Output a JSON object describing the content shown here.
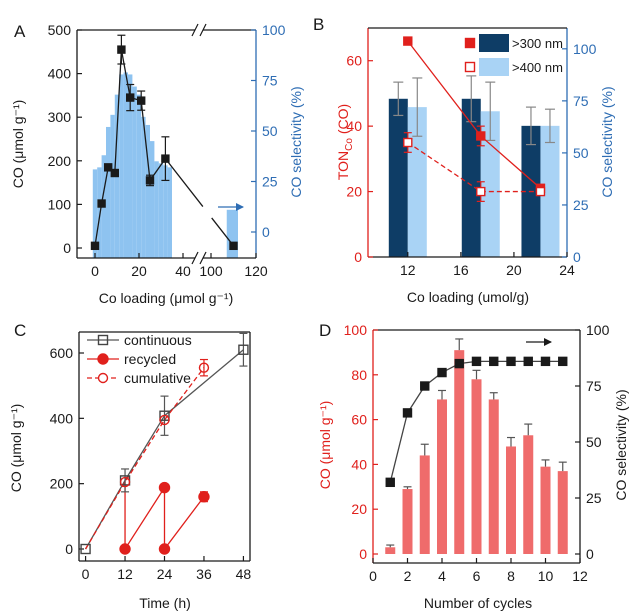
{
  "figure": {
    "colors": {
      "black": "#1a1a1a",
      "blue_axis": "#2e6db4",
      "red_axis": "#e0201c",
      "light_blue": "#99c9f3",
      "bar_mid": "#8ec3f0",
      "dark_navy": "#0e3d66",
      "pale_blue": "#a9d3f5",
      "red_bar": "#ef6b6b"
    }
  },
  "chart_data": [
    {
      "panel": "A",
      "type": "bar+line",
      "panel_label": "A",
      "ylabel_left": "CO (μmol g⁻¹)",
      "ylabel_right": "CO selectivity (%)",
      "xlabel": "Co loading (μmol g⁻¹)",
      "x_ticks": [
        "0",
        "20",
        "40",
        "100",
        "120"
      ],
      "y_left_ticks": [
        "0",
        "100",
        "200",
        "300",
        "400",
        "500"
      ],
      "y_right_ticks": [
        "0",
        "25",
        "50",
        "75",
        "100"
      ],
      "y_left_range": [
        0,
        500
      ],
      "y_right_range": [
        -20,
        100
      ],
      "x_break": "between 40 and 100",
      "bars_selectivity": [
        {
          "x0": -1,
          "x1": 1,
          "value": 31
        },
        {
          "x0": 1,
          "x1": 3,
          "value": 32
        },
        {
          "x0": 3,
          "x1": 5,
          "value": 38
        },
        {
          "x0": 5,
          "x1": 7,
          "value": 52
        },
        {
          "x0": 7,
          "x1": 9,
          "value": 58
        },
        {
          "x0": 9,
          "x1": 11,
          "value": 68
        },
        {
          "x0": 11,
          "x1": 13,
          "value": 78
        },
        {
          "x0": 13,
          "x1": 15,
          "value": 79
        },
        {
          "x0": 15,
          "x1": 17,
          "value": 78
        },
        {
          "x0": 17,
          "x1": 19,
          "value": 72
        },
        {
          "x0": 19,
          "x1": 21,
          "value": 68
        },
        {
          "x0": 21,
          "x1": 23,
          "value": 57
        },
        {
          "x0": 23,
          "x1": 25,
          "value": 53
        },
        {
          "x0": 25,
          "x1": 27,
          "value": 45
        },
        {
          "x0": 27,
          "x1": 29,
          "value": 35
        },
        {
          "x0": 29,
          "x1": 31,
          "value": 34
        },
        {
          "x0": 31,
          "x1": 33,
          "value": 33
        },
        {
          "x0": 33,
          "x1": 35,
          "value": 32
        },
        {
          "x0": 107,
          "x1": 112,
          "value": 11
        }
      ],
      "series_co": [
        {
          "x": 0,
          "y": 5
        },
        {
          "x": 3,
          "y": 102
        },
        {
          "x": 6,
          "y": 185
        },
        {
          "x": 9,
          "y": 172
        },
        {
          "x": 12,
          "y": 455,
          "err": 33
        },
        {
          "x": 16,
          "y": 345,
          "err": 30
        },
        {
          "x": 21,
          "y": 338,
          "err": 22
        },
        {
          "x": 25,
          "y": 155,
          "err": 12
        },
        {
          "x": 32,
          "y": 205,
          "err": 50
        },
        {
          "x": 110,
          "y": 5
        }
      ],
      "arrow_direction": "right"
    },
    {
      "panel": "B",
      "type": "bar+line",
      "panel_label": "B",
      "ylabel_left": "TON",
      "ylabel_left_sub": "Co",
      "ylabel_left_tail": " (CO)",
      "ylabel_right": "CO selectivity (%)",
      "xlabel": "Co loading (umol/g)",
      "x_ticks": [
        "12",
        "16",
        "20",
        "24"
      ],
      "y_left_ticks": [
        "0",
        "20",
        "40",
        "60"
      ],
      "y_right_ticks": [
        "0",
        "25",
        "50",
        "75",
        "100"
      ],
      "x_range": [
        9,
        24
      ],
      "y_left_range": [
        0,
        70
      ],
      "y_right_range": [
        0,
        110
      ],
      "legend": [
        ">300 nm",
        ">400 nm"
      ],
      "legend_position": "top-right",
      "bars_300": [
        {
          "x": 12,
          "value": 76,
          "err": 8
        },
        {
          "x": 17.5,
          "value": 76,
          "err": 11
        },
        {
          "x": 22,
          "value": 63,
          "err": 9
        }
      ],
      "bars_400": [
        {
          "x": 12,
          "value": 72,
          "err": 14
        },
        {
          "x": 17.5,
          "value": 70,
          "err": 14
        },
        {
          "x": 22,
          "value": 63,
          "err": 8
        }
      ],
      "line_300": [
        {
          "x": 12,
          "y": 66
        },
        {
          "x": 17.5,
          "y": 37,
          "err": 3
        },
        {
          "x": 22,
          "y": 21
        }
      ],
      "line_400": [
        {
          "x": 12,
          "y": 35,
          "err": 3
        },
        {
          "x": 17.5,
          "y": 20,
          "err": 3
        },
        {
          "x": 22,
          "y": 20
        }
      ]
    },
    {
      "panel": "C",
      "type": "line",
      "panel_label": "C",
      "ylabel": "CO (μmol g⁻¹)",
      "xlabel": "Time (h)",
      "x_ticks": [
        "0",
        "12",
        "24",
        "36",
        "48"
      ],
      "y_ticks": [
        "0",
        "200",
        "400",
        "600"
      ],
      "x_range": [
        -2,
        50
      ],
      "y_range": [
        -30,
        690
      ],
      "legend": [
        "continuous",
        "recycled",
        "cumulative"
      ],
      "legend_position": "top-left",
      "continuous": [
        {
          "x": 0,
          "y": 0
        },
        {
          "x": 12,
          "y": 210,
          "err": 35
        },
        {
          "x": 24,
          "y": 408,
          "err": 60
        },
        {
          "x": 48,
          "y": 610,
          "err": 50
        }
      ],
      "recycled_segments": [
        [
          {
            "x": 12,
            "y": 210
          },
          {
            "x": 12,
            "y": 0
          },
          {
            "x": 24,
            "y": 188
          }
        ],
        [
          {
            "x": 24,
            "y": 188
          },
          {
            "x": 24,
            "y": 0
          },
          {
            "x": 36,
            "y": 160
          }
        ]
      ],
      "recycled_points": [
        {
          "x": 12,
          "y": 0
        },
        {
          "x": 24,
          "y": 188
        },
        {
          "x": 24,
          "y": 0
        },
        {
          "x": 36,
          "y": 160,
          "err": 15
        }
      ],
      "cumulative": [
        {
          "x": 12,
          "y": 205
        },
        {
          "x": 24,
          "y": 395
        },
        {
          "x": 36,
          "y": 555,
          "err": 25
        }
      ]
    },
    {
      "panel": "D",
      "type": "bar+line",
      "panel_label": "D",
      "ylabel_left": "CO (μmol g⁻¹)",
      "ylabel_right": "CO selectivity (%)",
      "xlabel": "Number of cycles",
      "x_ticks": [
        "0",
        "2",
        "4",
        "6",
        "8",
        "10",
        "12"
      ],
      "y_left_ticks": [
        "0",
        "20",
        "40",
        "60",
        "80",
        "100"
      ],
      "y_right_ticks": [
        "0",
        "25",
        "50",
        "75",
        "100"
      ],
      "x_range": [
        0,
        12
      ],
      "y_left_range": [
        0,
        100
      ],
      "y_right_range": [
        0,
        100
      ],
      "bars": [
        {
          "x": 1,
          "value": 3,
          "err": 1
        },
        {
          "x": 2,
          "value": 29,
          "err": 1
        },
        {
          "x": 3,
          "value": 44,
          "err": 5
        },
        {
          "x": 4,
          "value": 69,
          "err": 4
        },
        {
          "x": 5,
          "value": 91,
          "err": 5
        },
        {
          "x": 6,
          "value": 78,
          "err": 4
        },
        {
          "x": 7,
          "value": 69,
          "err": 3
        },
        {
          "x": 8,
          "value": 48,
          "err": 4
        },
        {
          "x": 9,
          "value": 53,
          "err": 5
        },
        {
          "x": 10,
          "value": 39,
          "err": 3
        },
        {
          "x": 11,
          "value": 37,
          "err": 4
        }
      ],
      "selectivity": [
        {
          "x": 1,
          "y": 32
        },
        {
          "x": 2,
          "y": 63
        },
        {
          "x": 3,
          "y": 75
        },
        {
          "x": 4,
          "y": 81
        },
        {
          "x": 5,
          "y": 85
        },
        {
          "x": 6,
          "y": 86
        },
        {
          "x": 7,
          "y": 86
        },
        {
          "x": 8,
          "y": 86
        },
        {
          "x": 9,
          "y": 86
        },
        {
          "x": 10,
          "y": 86
        },
        {
          "x": 11,
          "y": 86
        }
      ],
      "arrow_direction": "right"
    }
  ]
}
